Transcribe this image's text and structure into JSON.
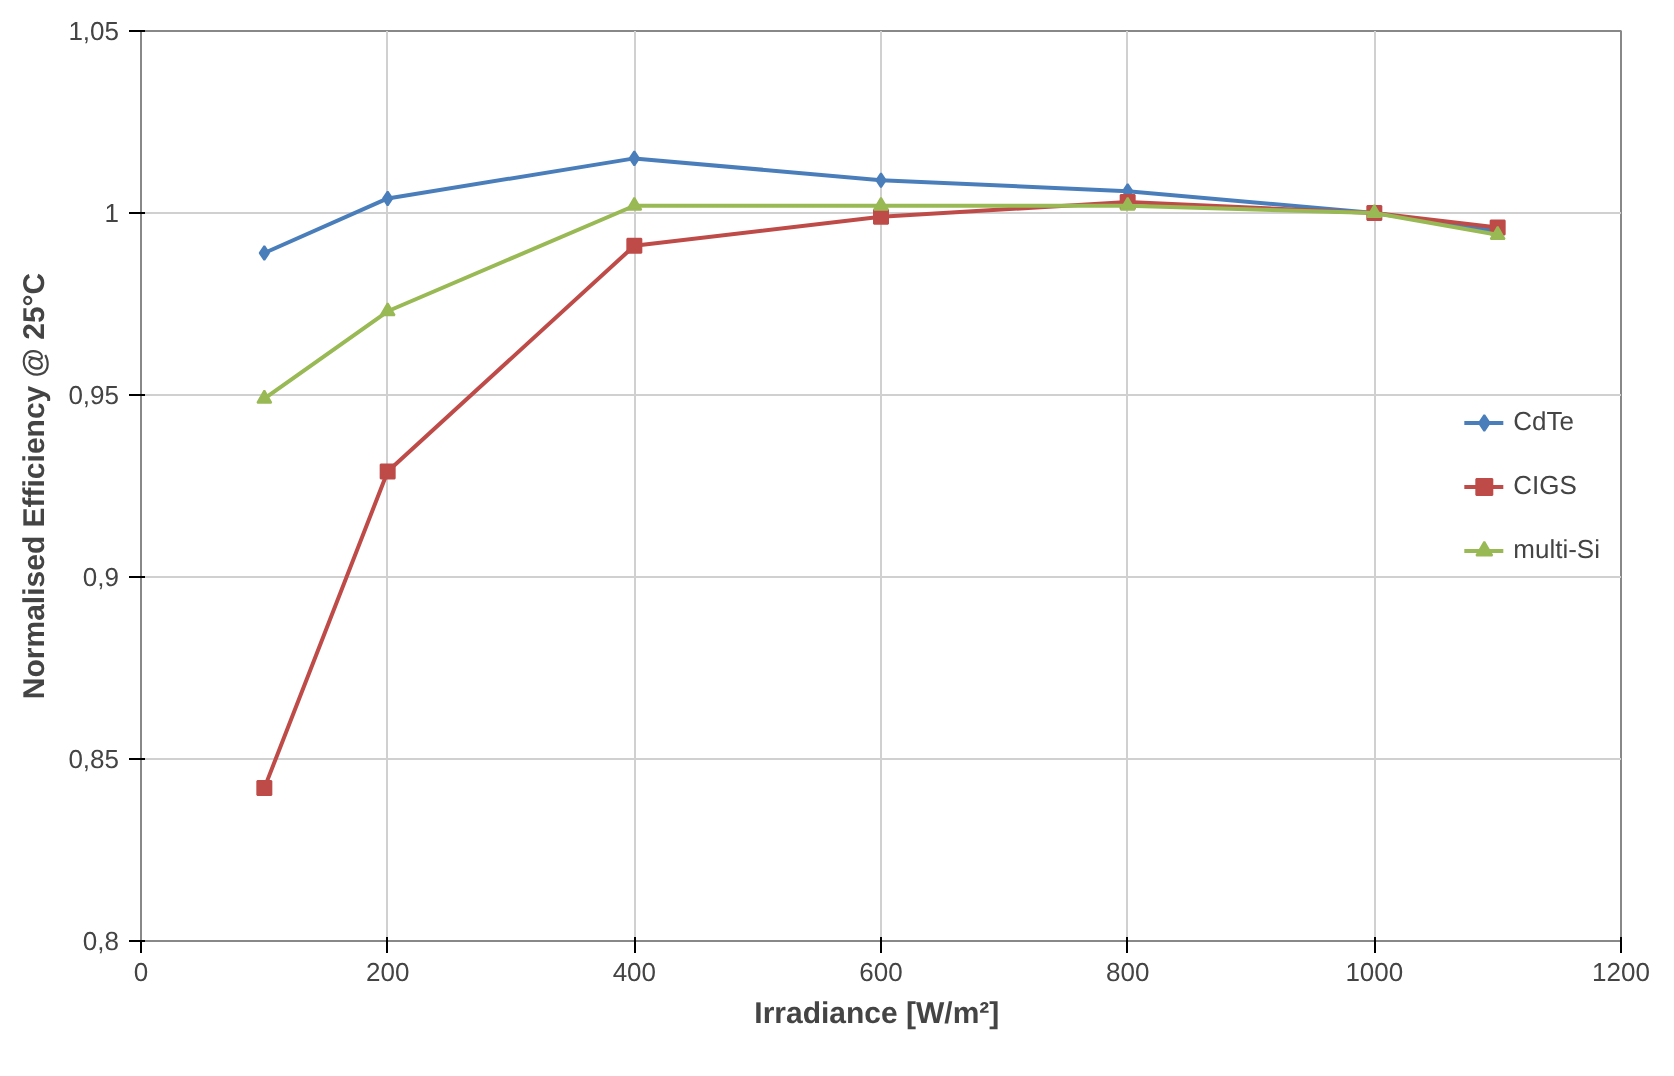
{
  "chart_data": {
    "type": "line",
    "xlabel": "Irradiance  [W/m²]",
    "ylabel": "Normalised Efficiency @ 25°C",
    "x": [
      100,
      200,
      400,
      600,
      800,
      1000,
      1100
    ],
    "series": [
      {
        "name": "CdTe",
        "color": "#4a7ebb",
        "marker": "diamond",
        "values": [
          0.989,
          1.004,
          1.015,
          1.009,
          1.006,
          1.0,
          0.995
        ]
      },
      {
        "name": "CIGS",
        "color": "#be4b48",
        "marker": "square",
        "values": [
          0.842,
          0.929,
          0.991,
          0.999,
          1.003,
          1.0,
          0.996
        ]
      },
      {
        "name": "multi-Si",
        "color": "#98b954",
        "marker": "triangle",
        "values": [
          0.949,
          0.973,
          1.002,
          1.002,
          1.002,
          1.0,
          0.994
        ]
      }
    ],
    "xlim": [
      0,
      1200
    ],
    "xticks": [
      0,
      200,
      400,
      600,
      800,
      1000,
      1200
    ],
    "ylim": [
      0.8,
      1.05
    ],
    "yticks": [
      {
        "value": 0.8,
        "label": "0,8"
      },
      {
        "value": 0.85,
        "label": "0,85"
      },
      {
        "value": 0.9,
        "label": "0,9"
      },
      {
        "value": 0.95,
        "label": "0,95"
      },
      {
        "value": 1,
        "label": "1"
      },
      {
        "value": 1.05,
        "label": "1,05"
      }
    ],
    "grid": true,
    "legend": "right",
    "line_style": "solid"
  }
}
